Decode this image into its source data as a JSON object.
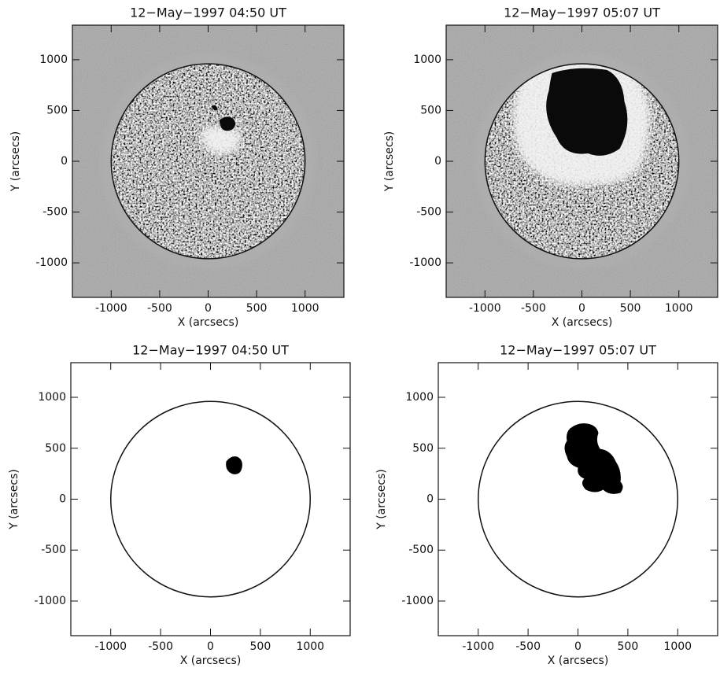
{
  "chart_data": [
    {
      "type": "image",
      "title": "12−May−1997 04:50 UT",
      "x_label": "X (arcsecs)",
      "y_label": "Y (arcsecs)",
      "xlim": [
        -1400,
        1400
      ],
      "ylim": [
        -1340,
        1340
      ],
      "xticks": [
        -1000,
        -500,
        0,
        500,
        1000
      ],
      "yticks": [
        -1000,
        -500,
        0,
        500,
        1000
      ]
    },
    {
      "type": "image",
      "title": "12−May−1997 05:07 UT",
      "x_label": "X (arcsecs)",
      "y_label": "Y (arcsecs)",
      "xlim": [
        -1400,
        1400
      ],
      "ylim": [
        -1340,
        1340
      ],
      "xticks": [
        -1000,
        -500,
        0,
        500,
        1000
      ],
      "yticks": [
        -1000,
        -500,
        0,
        500,
        1000
      ]
    },
    {
      "type": "mask",
      "title": "12−May−1997 04:50 UT",
      "x_label": "X (arcsecs)",
      "y_label": "Y (arcsecs)",
      "xlim": [
        -1400,
        1400
      ],
      "ylim": [
        -1340,
        1340
      ],
      "xticks": [
        -1000,
        -500,
        0,
        500,
        1000
      ],
      "yticks": [
        -1000,
        -500,
        0,
        500,
        1000
      ]
    },
    {
      "type": "mask",
      "title": "12−May−1997 05:07 UT",
      "x_label": "X (arcsecs)",
      "y_label": "Y (arcsecs)",
      "xlim": [
        -1400,
        1400
      ],
      "ylim": [
        -1340,
        1340
      ],
      "xticks": [
        -1000,
        -500,
        0,
        500,
        1000
      ],
      "yticks": [
        -1000,
        -500,
        0,
        500,
        1000
      ]
    }
  ]
}
